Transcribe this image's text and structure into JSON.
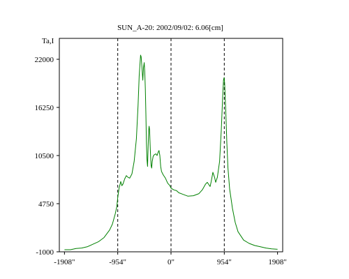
{
  "chart_data": {
    "type": "line",
    "title": "SUN_A-20: 2002/09/02: 6.06[cm]",
    "ylabel": "Ta,I",
    "xlabel": "",
    "xlim": [
      -2000,
      2000
    ],
    "ylim": [
      -1000,
      24500
    ],
    "x_ticks": [
      {
        "value": -1908,
        "label": "-1908\""
      },
      {
        "value": -954,
        "label": "-954\""
      },
      {
        "value": 0,
        "label": "0\""
      },
      {
        "value": 954,
        "label": "954\""
      },
      {
        "value": 1908,
        "label": "1908\""
      }
    ],
    "y_ticks": [
      {
        "value": -1000,
        "label": "-1000"
      },
      {
        "value": 4750,
        "label": "4750"
      },
      {
        "value": 10500,
        "label": "10500"
      },
      {
        "value": 16250,
        "label": "16250"
      },
      {
        "value": 22000,
        "label": "22000"
      }
    ],
    "vlines": [
      -954,
      0,
      954
    ],
    "grid": false,
    "legend": "none",
    "series": [
      {
        "color": "#008000",
        "points": [
          [
            -1908,
            -750
          ],
          [
            -1800,
            -750
          ],
          [
            -1700,
            -600
          ],
          [
            -1600,
            -550
          ],
          [
            -1500,
            -400
          ],
          [
            -1400,
            -100
          ],
          [
            -1300,
            200
          ],
          [
            -1200,
            700
          ],
          [
            -1100,
            1600
          ],
          [
            -1050,
            2300
          ],
          [
            -1000,
            3500
          ],
          [
            -970,
            4400
          ],
          [
            -954,
            5500
          ],
          [
            -930,
            6600
          ],
          [
            -900,
            7400
          ],
          [
            -880,
            6900
          ],
          [
            -860,
            7100
          ],
          [
            -830,
            7700
          ],
          [
            -800,
            8100
          ],
          [
            -770,
            7900
          ],
          [
            -740,
            7800
          ],
          [
            -700,
            8300
          ],
          [
            -660,
            9800
          ],
          [
            -620,
            12500
          ],
          [
            -590,
            16500
          ],
          [
            -570,
            20000
          ],
          [
            -555,
            21500
          ],
          [
            -545,
            22500
          ],
          [
            -535,
            22300
          ],
          [
            -520,
            21000
          ],
          [
            -505,
            19500
          ],
          [
            -492,
            21000
          ],
          [
            -480,
            21600
          ],
          [
            -470,
            20500
          ],
          [
            -460,
            18500
          ],
          [
            -450,
            15500
          ],
          [
            -440,
            12000
          ],
          [
            -430,
            10000
          ],
          [
            -420,
            9200
          ],
          [
            -410,
            11500
          ],
          [
            -400,
            13500
          ],
          [
            -392,
            14000
          ],
          [
            -384,
            13600
          ],
          [
            -376,
            12200
          ],
          [
            -366,
            10500
          ],
          [
            -356,
            9300
          ],
          [
            -346,
            9000
          ],
          [
            -336,
            9800
          ],
          [
            -320,
            10400
          ],
          [
            -300,
            10600
          ],
          [
            -270,
            10700
          ],
          [
            -250,
            10500
          ],
          [
            -230,
            10900
          ],
          [
            -215,
            11100
          ],
          [
            -200,
            10500
          ],
          [
            -185,
            9200
          ],
          [
            -170,
            8600
          ],
          [
            -140,
            8200
          ],
          [
            -100,
            7800
          ],
          [
            -60,
            7200
          ],
          [
            -20,
            6900
          ],
          [
            0,
            6600
          ],
          [
            50,
            6400
          ],
          [
            100,
            6300
          ],
          [
            140,
            6050
          ],
          [
            200,
            5900
          ],
          [
            300,
            5650
          ],
          [
            400,
            5700
          ],
          [
            500,
            5950
          ],
          [
            560,
            6400
          ],
          [
            620,
            7100
          ],
          [
            650,
            7300
          ],
          [
            680,
            7000
          ],
          [
            700,
            6800
          ],
          [
            720,
            7400
          ],
          [
            750,
            8500
          ],
          [
            780,
            7900
          ],
          [
            800,
            7300
          ],
          [
            830,
            7900
          ],
          [
            870,
            9800
          ],
          [
            900,
            13500
          ],
          [
            925,
            17500
          ],
          [
            940,
            19500
          ],
          [
            950,
            19800
          ],
          [
            960,
            19200
          ],
          [
            980,
            16000
          ],
          [
            1000,
            12000
          ],
          [
            1020,
            9000
          ],
          [
            1050,
            6500
          ],
          [
            1100,
            4200
          ],
          [
            1150,
            2500
          ],
          [
            1200,
            1400
          ],
          [
            1300,
            400
          ],
          [
            1400,
            0
          ],
          [
            1500,
            -250
          ],
          [
            1600,
            -400
          ],
          [
            1700,
            -550
          ],
          [
            1800,
            -650
          ],
          [
            1908,
            -700
          ]
        ]
      }
    ]
  }
}
